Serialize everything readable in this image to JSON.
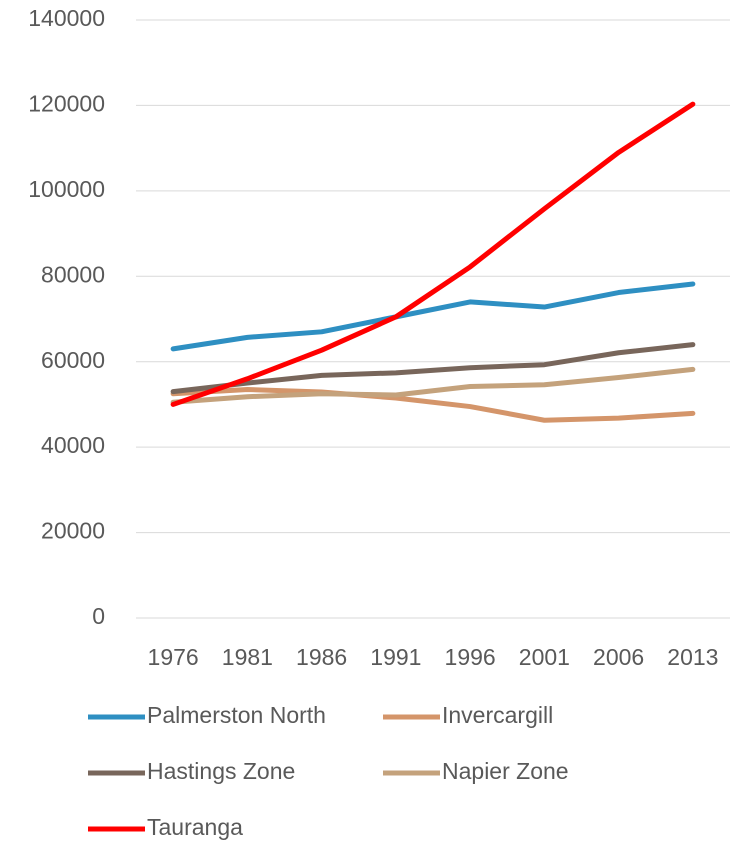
{
  "chart_data": {
    "type": "line",
    "categories": [
      "1976",
      "1981",
      "1986",
      "1991",
      "1996",
      "2001",
      "2006",
      "2013"
    ],
    "series": [
      {
        "name": "Palmerston North",
        "color": "#2e8fc2",
        "values": [
          63000,
          65700,
          67000,
          70500,
          74000,
          72800,
          76200,
          78200
        ]
      },
      {
        "name": "Invercargill",
        "color": "#d4956a",
        "values": [
          52500,
          53500,
          52900,
          51500,
          49500,
          46300,
          46800,
          47900
        ]
      },
      {
        "name": "Hastings Zone",
        "color": "#78665b",
        "values": [
          53000,
          55000,
          56800,
          57400,
          58600,
          59300,
          62100,
          64000
        ]
      },
      {
        "name": "Napier Zone",
        "color": "#c4a27c",
        "values": [
          50500,
          51800,
          52500,
          52200,
          54200,
          54600,
          56300,
          58200
        ]
      },
      {
        "name": "Tauranga",
        "color": "#ff0000",
        "values": [
          50000,
          56000,
          62700,
          70500,
          82200,
          95800,
          109000,
          120300
        ]
      }
    ],
    "ylim": [
      0,
      140000
    ],
    "yticks": [
      0,
      20000,
      40000,
      60000,
      80000,
      100000,
      120000,
      140000
    ],
    "grid": true
  }
}
